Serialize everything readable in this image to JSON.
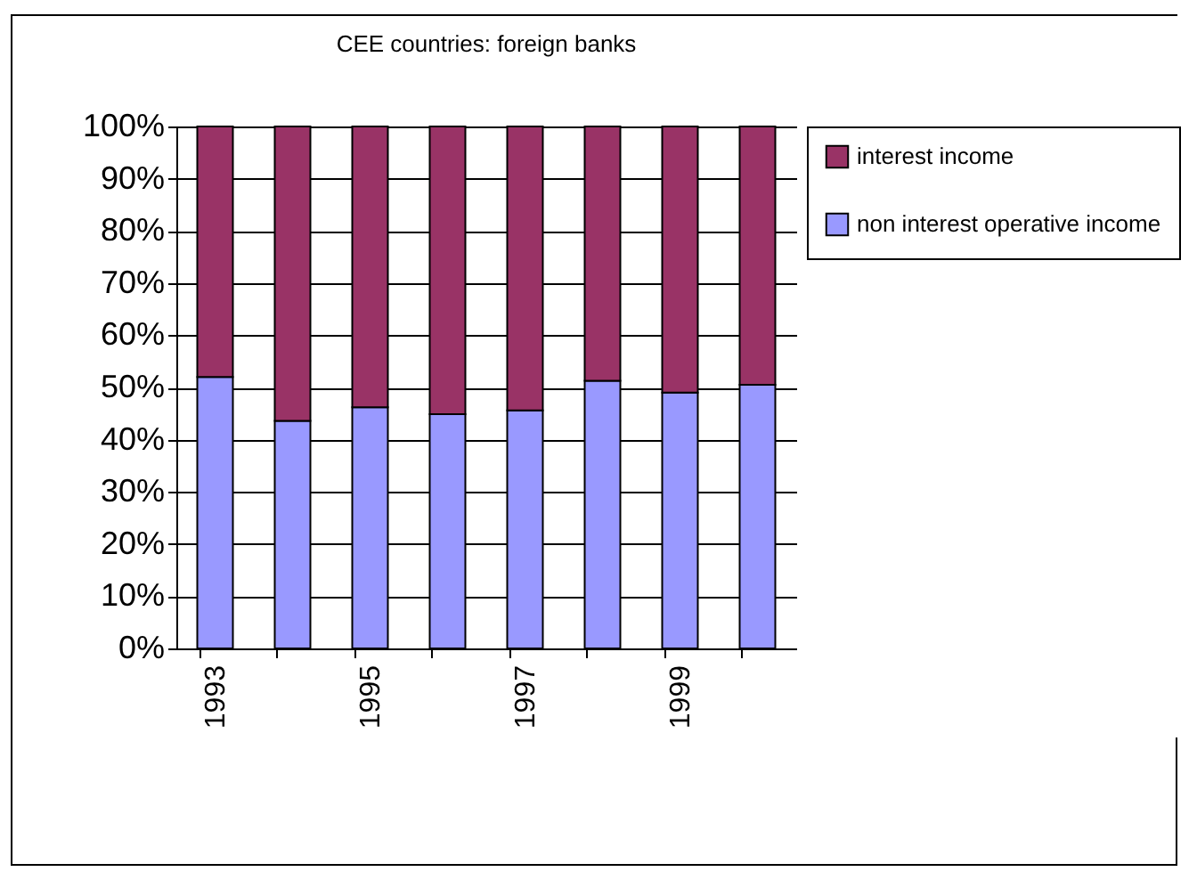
{
  "chart_data": {
    "type": "bar",
    "title": "CEE countries: foreign banks",
    "stacked": true,
    "categories": [
      "1993",
      null,
      "1995",
      null,
      "1997",
      null,
      "1999",
      null
    ],
    "series": [
      {
        "name": "non interest operative income",
        "color": "#9999ff",
        "values": [
          52,
          43.6,
          46.2,
          44.9,
          45.6,
          51.3,
          49,
          50.5
        ]
      },
      {
        "name": "interest income",
        "color": "#993366",
        "values": [
          48,
          56.4,
          53.8,
          55.1,
          54.4,
          48.7,
          51,
          49.5
        ]
      }
    ],
    "ylim": [
      0,
      100
    ],
    "yticks": [
      {
        "value": 0,
        "label": "0%"
      },
      {
        "value": 10,
        "label": "10%"
      },
      {
        "value": 20,
        "label": "20%"
      },
      {
        "value": 30,
        "label": "30%"
      },
      {
        "value": 40,
        "label": "40%"
      },
      {
        "value": 50,
        "label": "50%"
      },
      {
        "value": 60,
        "label": "60%"
      },
      {
        "value": 70,
        "label": "70%"
      },
      {
        "value": 80,
        "label": "80%"
      },
      {
        "value": 90,
        "label": "90%"
      },
      {
        "value": 100,
        "label": "100%"
      }
    ],
    "grid": "y",
    "legend": "right"
  }
}
